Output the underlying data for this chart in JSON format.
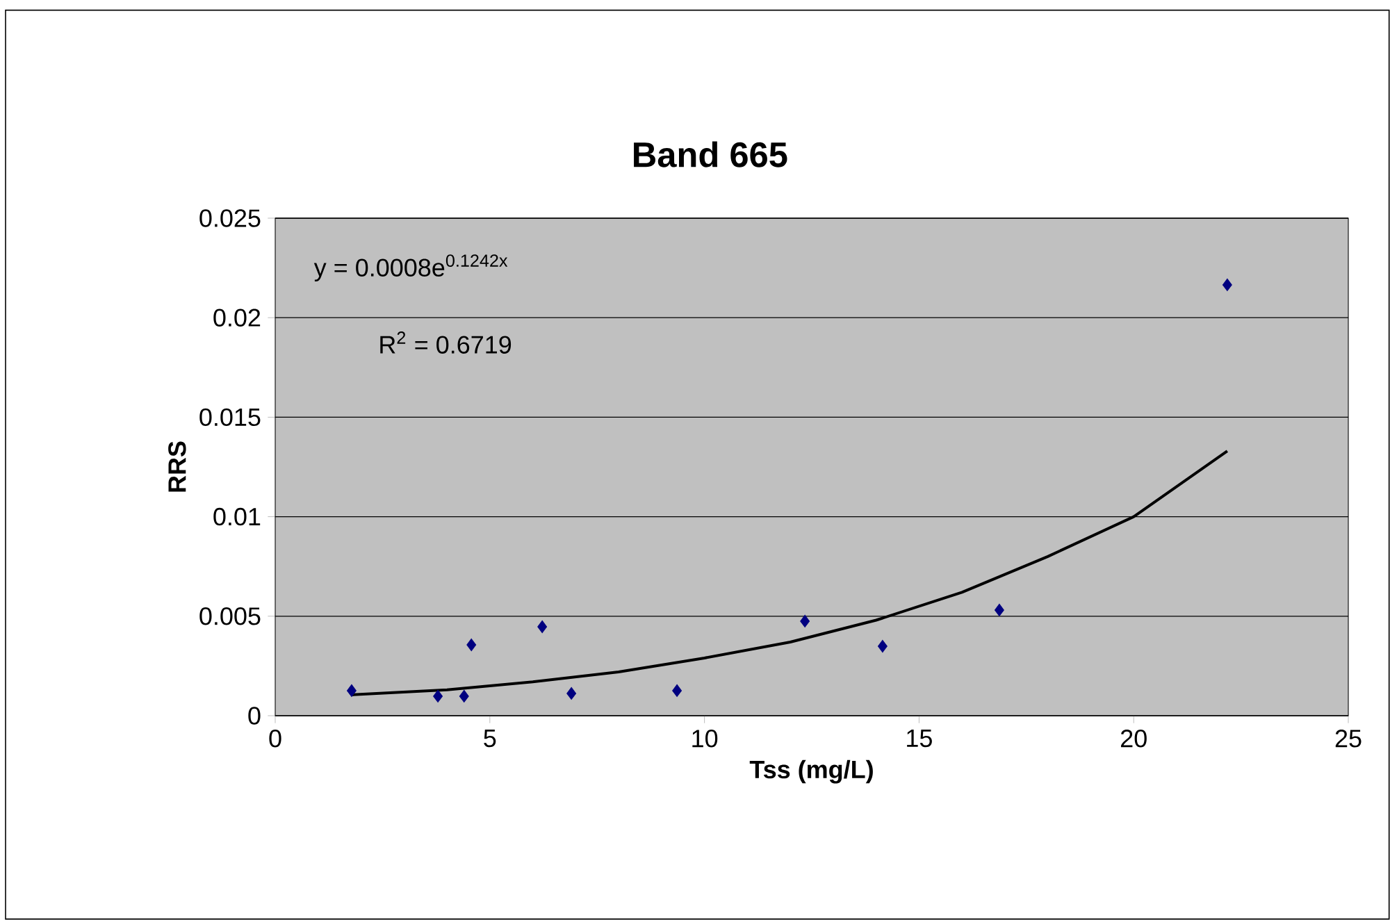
{
  "chart_data": {
    "type": "scatter",
    "title": "Band 665",
    "xlabel": "Tss (mg/L)",
    "ylabel": "RRS",
    "xlim": [
      0,
      25
    ],
    "xticks": [
      0,
      5,
      10,
      15,
      20,
      25
    ],
    "ylim": [
      0,
      0.025
    ],
    "yticks": [
      0,
      0.005,
      0.01,
      0.015,
      0.02,
      0.025
    ],
    "grid": "y",
    "annotations": [
      "y = 0.0008e$^{0.1242x}$",
      "R$^{2}$ = 0.6719"
    ],
    "series": [
      {
        "type": "scatter",
        "color": "#000080",
        "marker": "diamond",
        "x": [
          1.78,
          3.79,
          4.4,
          4.57,
          6.22,
          6.9,
          9.36,
          12.34,
          14.15,
          16.87,
          22.18
        ],
        "values": [
          0.00126,
          0.00098,
          0.00098,
          0.00356,
          0.00447,
          0.00112,
          0.00126,
          0.00475,
          0.00349,
          0.00531,
          0.02165
        ]
      },
      {
        "type": "line",
        "color": "#000000",
        "marker": "none",
        "line_style": "solid",
        "x": [
          1.78,
          4,
          6,
          8,
          10,
          12,
          14,
          16,
          18,
          20,
          22.18
        ],
        "values": [
          0.00105,
          0.0013,
          0.0017,
          0.0022,
          0.0029,
          0.0037,
          0.0048,
          0.0062,
          0.008,
          0.01,
          0.0133
        ]
      }
    ]
  }
}
